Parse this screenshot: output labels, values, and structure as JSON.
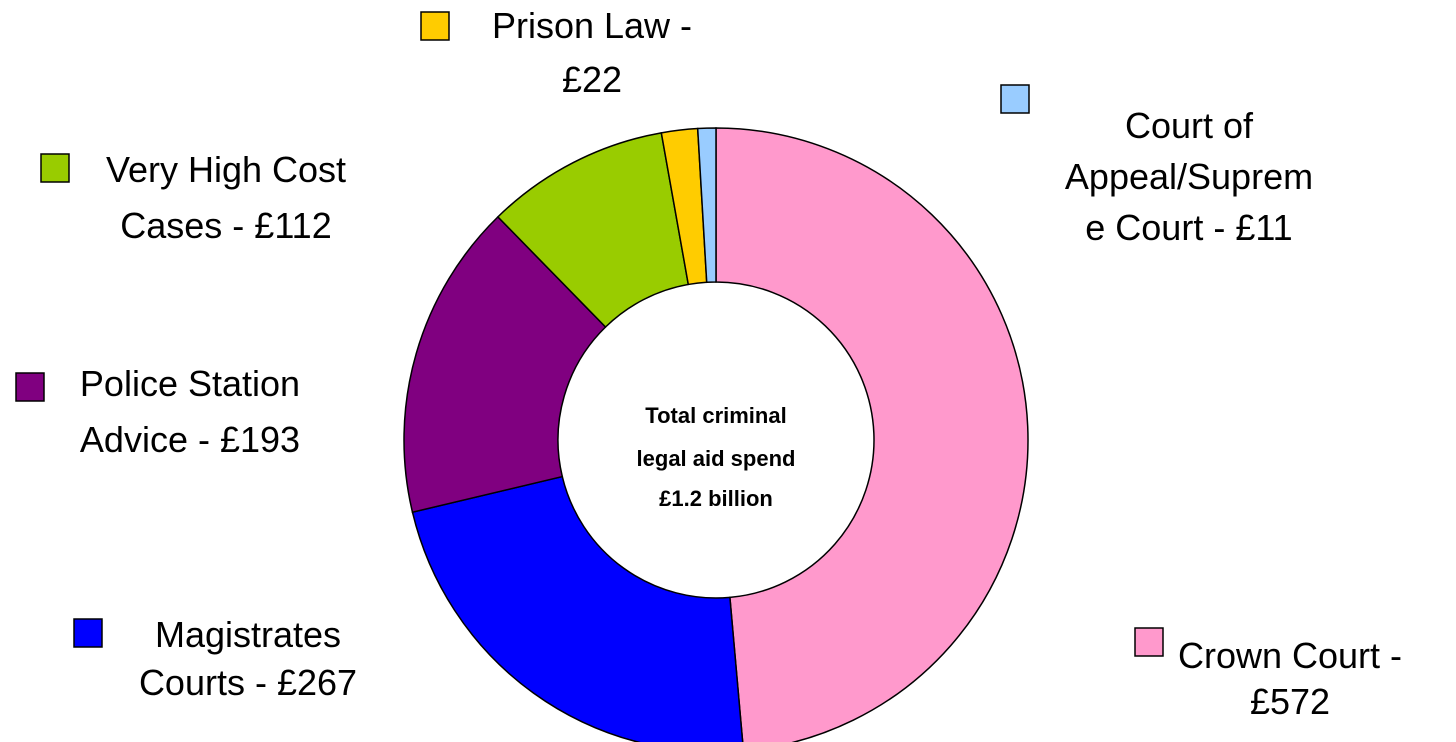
{
  "chart_data": {
    "type": "pie",
    "variant": "doughnut",
    "slices": [
      {
        "name": "Crown Court",
        "value": 572,
        "color": "#FF99CC",
        "label_lines": [
          "Crown Court -",
          "£572"
        ]
      },
      {
        "name": "Magistrates Courts",
        "value": 267,
        "color": "#0000FF",
        "label_lines": [
          "Magistrates",
          "Courts - £267"
        ]
      },
      {
        "name": "Police Station Advice",
        "value": 193,
        "color": "#800080",
        "label_lines": [
          "Police Station",
          "Advice - £193"
        ]
      },
      {
        "name": "Very High Cost Cases",
        "value": 112,
        "color": "#99CC00",
        "label_lines": [
          "Very High Cost",
          "Cases - £112"
        ]
      },
      {
        "name": "Prison Law",
        "value": 22,
        "color": "#FFCC00",
        "label_lines": [
          "Prison Law -",
          "£22"
        ]
      },
      {
        "name": "Court of Appeal/Supreme Court",
        "value": 11,
        "color": "#99CCFF",
        "label_lines": [
          "Court of",
          "Appeal/Suprem",
          "e Court - £11"
        ]
      }
    ],
    "center_text": [
      "Total criminal",
      "legal aid spend",
      "£1.2 billion"
    ],
    "start": "12 o'clock",
    "direction": "clockwise",
    "legend_style": "swatch beside each outside label"
  }
}
